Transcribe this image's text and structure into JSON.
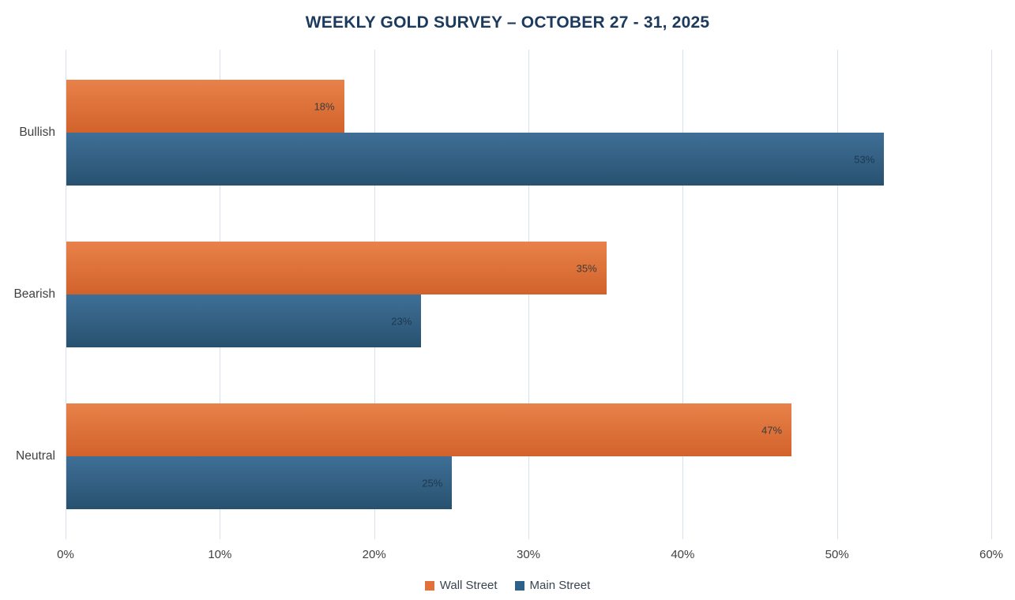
{
  "title": "WEEKLY GOLD SURVEY – OCTOBER 27 - 31, 2025",
  "colors": {
    "title": "#1C3A5E",
    "gridline": "#D8E1EB",
    "axis_text": "#404040",
    "background": "#FFFFFF"
  },
  "chart_data": {
    "type": "bar",
    "orientation": "horizontal",
    "title": "WEEKLY GOLD SURVEY – OCTOBER 27 - 31, 2025",
    "categories": [
      "Bullish",
      "Bearish",
      "Neutral"
    ],
    "series": [
      {
        "name": "Wall Street",
        "values": [
          18,
          35,
          47
        ],
        "color": "#E2703A",
        "gradient_top": "#E8824A",
        "gradient_bottom": "#D2622B",
        "label_color": "#3B3B3B"
      },
      {
        "name": "Main Street",
        "values": [
          53,
          23,
          25
        ],
        "color": "#2E6187",
        "gradient_top": "#3F6F97",
        "gradient_bottom": "#28516F",
        "label_color": "#1C3850"
      }
    ],
    "data_labels": [
      "18%",
      "53%",
      "35%",
      "23%",
      "47%",
      "25%"
    ],
    "x_ticks": [
      "0%",
      "10%",
      "20%",
      "30%",
      "40%",
      "50%",
      "60%"
    ],
    "xlim": [
      0,
      60
    ],
    "xlabel": "",
    "ylabel": "",
    "grid": true,
    "legend_position": "bottom",
    "data_label_position": "inside-end"
  }
}
